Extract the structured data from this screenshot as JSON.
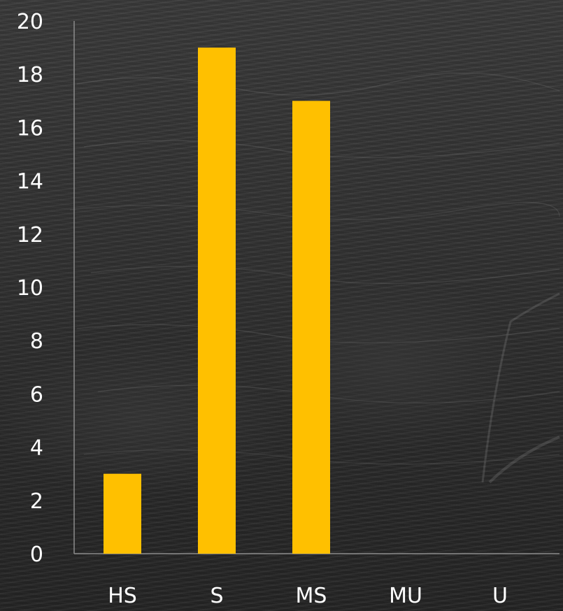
{
  "chart_data": {
    "type": "bar",
    "categories": [
      "HS",
      "S",
      "MS",
      "MU",
      "U"
    ],
    "values": [
      3,
      19,
      17,
      0,
      0
    ],
    "ylim": [
      0,
      20
    ],
    "yticks": [
      0,
      2,
      4,
      6,
      8,
      10,
      12,
      14,
      16,
      18,
      20
    ],
    "xlabel": "",
    "ylabel": "",
    "title": "",
    "grid": false,
    "bar_color": "#FFC000",
    "axis_color": "#8c8c8c",
    "label_color": "#ffffff",
    "background": "dark grayscale water photo"
  }
}
